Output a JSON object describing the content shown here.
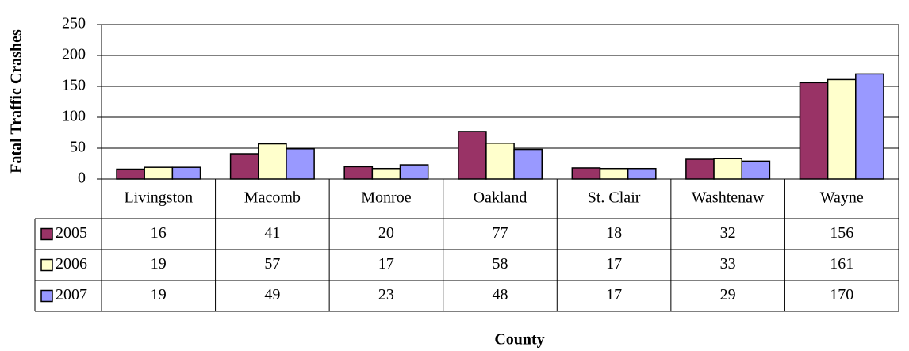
{
  "chart_data": {
    "type": "bar",
    "y_label": "Fatal Traffic Crashes",
    "x_label": "County",
    "categories": [
      "Livingston",
      "Macomb",
      "Monroe",
      "Oakland",
      "St. Clair",
      "Washtenaw",
      "Wayne"
    ],
    "series": [
      {
        "name": "2005",
        "color": "#993366",
        "values": [
          16,
          41,
          20,
          77,
          18,
          32,
          156
        ]
      },
      {
        "name": "2006",
        "color": "#FFFFCC",
        "values": [
          19,
          57,
          17,
          58,
          17,
          33,
          161
        ]
      },
      {
        "name": "2007",
        "color": "#9999FF",
        "values": [
          19,
          49,
          23,
          48,
          17,
          29,
          170
        ]
      }
    ],
    "ylim": [
      0,
      250
    ],
    "yticks": [
      0,
      50,
      100,
      150,
      200,
      250
    ],
    "grid": true,
    "data_table": true
  }
}
